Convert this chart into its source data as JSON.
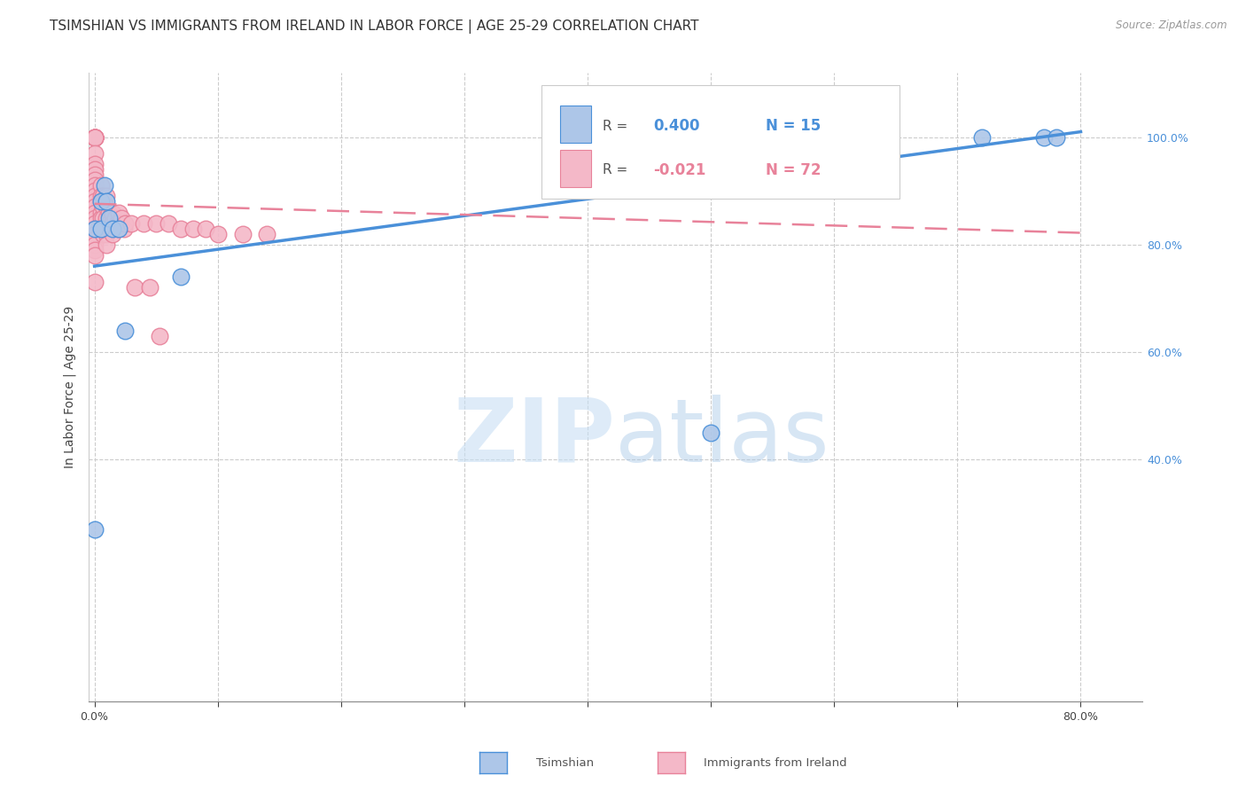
{
  "title": "TSIMSHIAN VS IMMIGRANTS FROM IRELAND IN LABOR FORCE | AGE 25-29 CORRELATION CHART",
  "source": "Source: ZipAtlas.com",
  "ylabel": "In Labor Force | Age 25-29",
  "watermark": "ZIPatlas",
  "xlim": [
    -0.005,
    0.85
  ],
  "ylim": [
    -0.05,
    1.12
  ],
  "legend_r1": "R = 0.400",
  "legend_n1": "N = 15",
  "legend_r2": "R = -0.021",
  "legend_n2": "N = 72",
  "color_tsimshian": "#adc6e8",
  "color_ireland": "#f4b8c8",
  "color_tsimshian_line": "#4a90d9",
  "color_ireland_line": "#e8829a",
  "tsimshian_x": [
    0.0,
    0.0,
    0.005,
    0.005,
    0.008,
    0.01,
    0.012,
    0.015,
    0.02,
    0.025,
    0.07,
    0.5,
    0.72,
    0.77,
    0.78
  ],
  "tsimshian_y": [
    0.27,
    0.83,
    0.83,
    0.88,
    0.91,
    0.88,
    0.85,
    0.83,
    0.83,
    0.64,
    0.74,
    0.45,
    1.0,
    1.0,
    1.0
  ],
  "ireland_x": [
    0.0,
    0.0,
    0.0,
    0.0,
    0.0,
    0.0,
    0.0,
    0.0,
    0.0,
    0.0,
    0.0,
    0.0,
    0.0,
    0.0,
    0.0,
    0.0,
    0.0,
    0.0,
    0.0,
    0.0,
    0.0,
    0.0,
    0.0,
    0.0,
    0.0,
    0.0,
    0.0,
    0.0,
    0.005,
    0.005,
    0.005,
    0.005,
    0.005,
    0.005,
    0.007,
    0.007,
    0.007,
    0.007,
    0.01,
    0.01,
    0.01,
    0.01,
    0.01,
    0.01,
    0.012,
    0.012,
    0.014,
    0.014,
    0.015,
    0.015,
    0.015,
    0.017,
    0.018,
    0.019,
    0.02,
    0.02,
    0.022,
    0.024,
    0.025,
    0.03,
    0.033,
    0.04,
    0.045,
    0.05,
    0.053,
    0.06,
    0.07,
    0.08,
    0.09,
    0.1,
    0.12,
    0.14
  ],
  "ireland_y": [
    1.0,
    1.0,
    1.0,
    1.0,
    1.0,
    1.0,
    1.0,
    1.0,
    0.97,
    0.95,
    0.94,
    0.93,
    0.92,
    0.91,
    0.9,
    0.89,
    0.88,
    0.87,
    0.86,
    0.85,
    0.84,
    0.83,
    0.82,
    0.81,
    0.8,
    0.79,
    0.78,
    0.73,
    0.91,
    0.89,
    0.88,
    0.86,
    0.85,
    0.83,
    0.89,
    0.87,
    0.85,
    0.82,
    0.89,
    0.87,
    0.85,
    0.83,
    0.82,
    0.8,
    0.86,
    0.84,
    0.86,
    0.84,
    0.86,
    0.84,
    0.82,
    0.85,
    0.84,
    0.83,
    0.86,
    0.84,
    0.85,
    0.83,
    0.84,
    0.84,
    0.72,
    0.84,
    0.72,
    0.84,
    0.63,
    0.84,
    0.83,
    0.83,
    0.83,
    0.82,
    0.82,
    0.82
  ],
  "tsim_line_x0": 0.0,
  "tsim_line_y0": 0.76,
  "tsim_line_x1": 0.8,
  "tsim_line_y1": 1.01,
  "ire_line_x0": 0.0,
  "ire_line_y0": 0.876,
  "ire_line_x1": 0.8,
  "ire_line_y1": 0.822,
  "background_color": "#ffffff",
  "grid_color": "#cccccc",
  "title_fontsize": 11,
  "axis_label_fontsize": 10,
  "tick_fontsize": 9,
  "right_tick_color": "#4a90d9"
}
